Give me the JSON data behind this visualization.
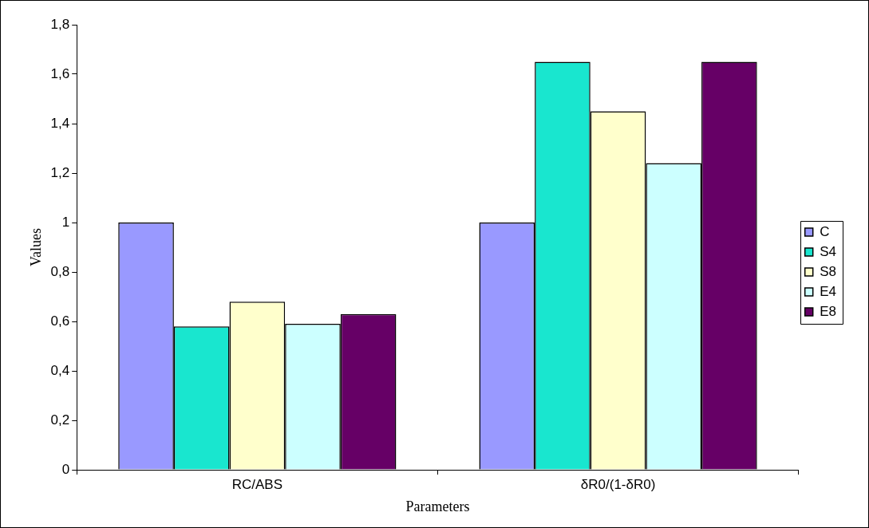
{
  "chart_data": {
    "type": "bar",
    "xlabel": "Parameters",
    "ylabel": "Values",
    "categories": [
      "RC/ABS",
      "δR0/(1-δR0)"
    ],
    "series": [
      {
        "name": "C",
        "color": "#9999ff",
        "values": [
          1.0,
          1.0
        ]
      },
      {
        "name": "S4",
        "color": "#19e6cf",
        "values": [
          0.58,
          1.65
        ]
      },
      {
        "name": "S8",
        "color": "#ffffcc",
        "values": [
          0.68,
          1.45
        ]
      },
      {
        "name": "E4",
        "color": "#ccffff",
        "values": [
          0.59,
          1.24
        ]
      },
      {
        "name": "E8",
        "color": "#660066",
        "values": [
          0.63,
          1.65
        ]
      }
    ],
    "ylim": [
      0,
      1.8
    ],
    "yticks": [
      0,
      {
        "value": 0.2,
        "label": "0,2"
      },
      {
        "value": 0.4,
        "label": "0,4"
      },
      {
        "value": 0.6,
        "label": "0,6"
      },
      {
        "value": 0.8,
        "label": "0,8"
      },
      1,
      {
        "value": 1.2,
        "label": "1,2"
      },
      {
        "value": 1.4,
        "label": "1,4"
      },
      {
        "value": 1.6,
        "label": "1,6"
      },
      {
        "value": 1.8,
        "label": "1,8"
      }
    ],
    "grid": false,
    "legend": "right"
  }
}
